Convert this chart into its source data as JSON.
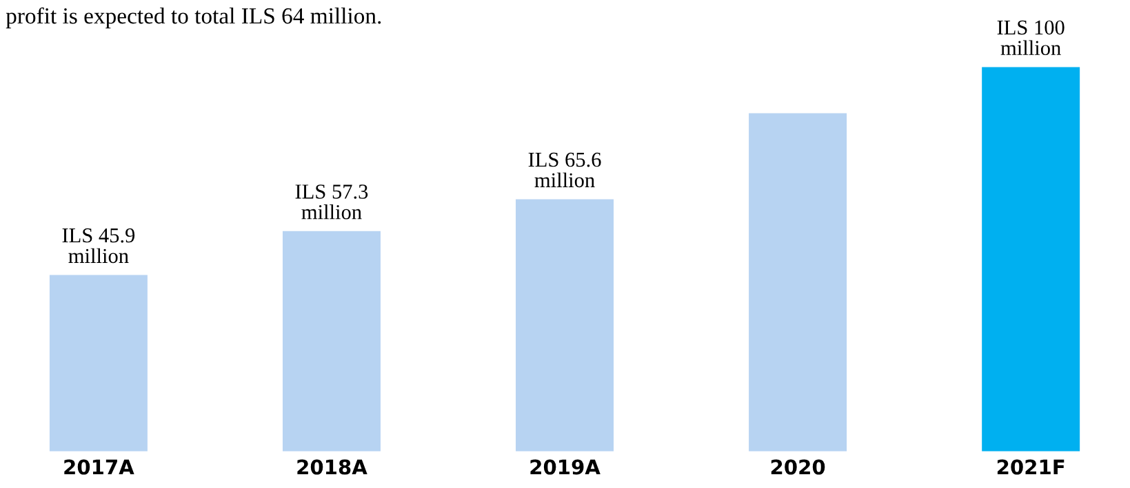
{
  "chart_data": {
    "type": "bar",
    "title": "profit is expected to total ILS 64 million.",
    "categories": [
      "2017A",
      "2018A",
      "2019A",
      "2020",
      "2021F"
    ],
    "values": [
      45.9,
      57.3,
      65.6,
      88,
      100
    ],
    "colors": [
      "#b7d3f2",
      "#b7d3f2",
      "#b7d3f2",
      "#b7d3f2",
      "#00b0f0"
    ],
    "value_labels": [
      "ILS 45.9\nmillion",
      "ILS 57.3\nmillion",
      "ILS 65.6\nmillion",
      null,
      "ILS 100\nmillion"
    ]
  }
}
